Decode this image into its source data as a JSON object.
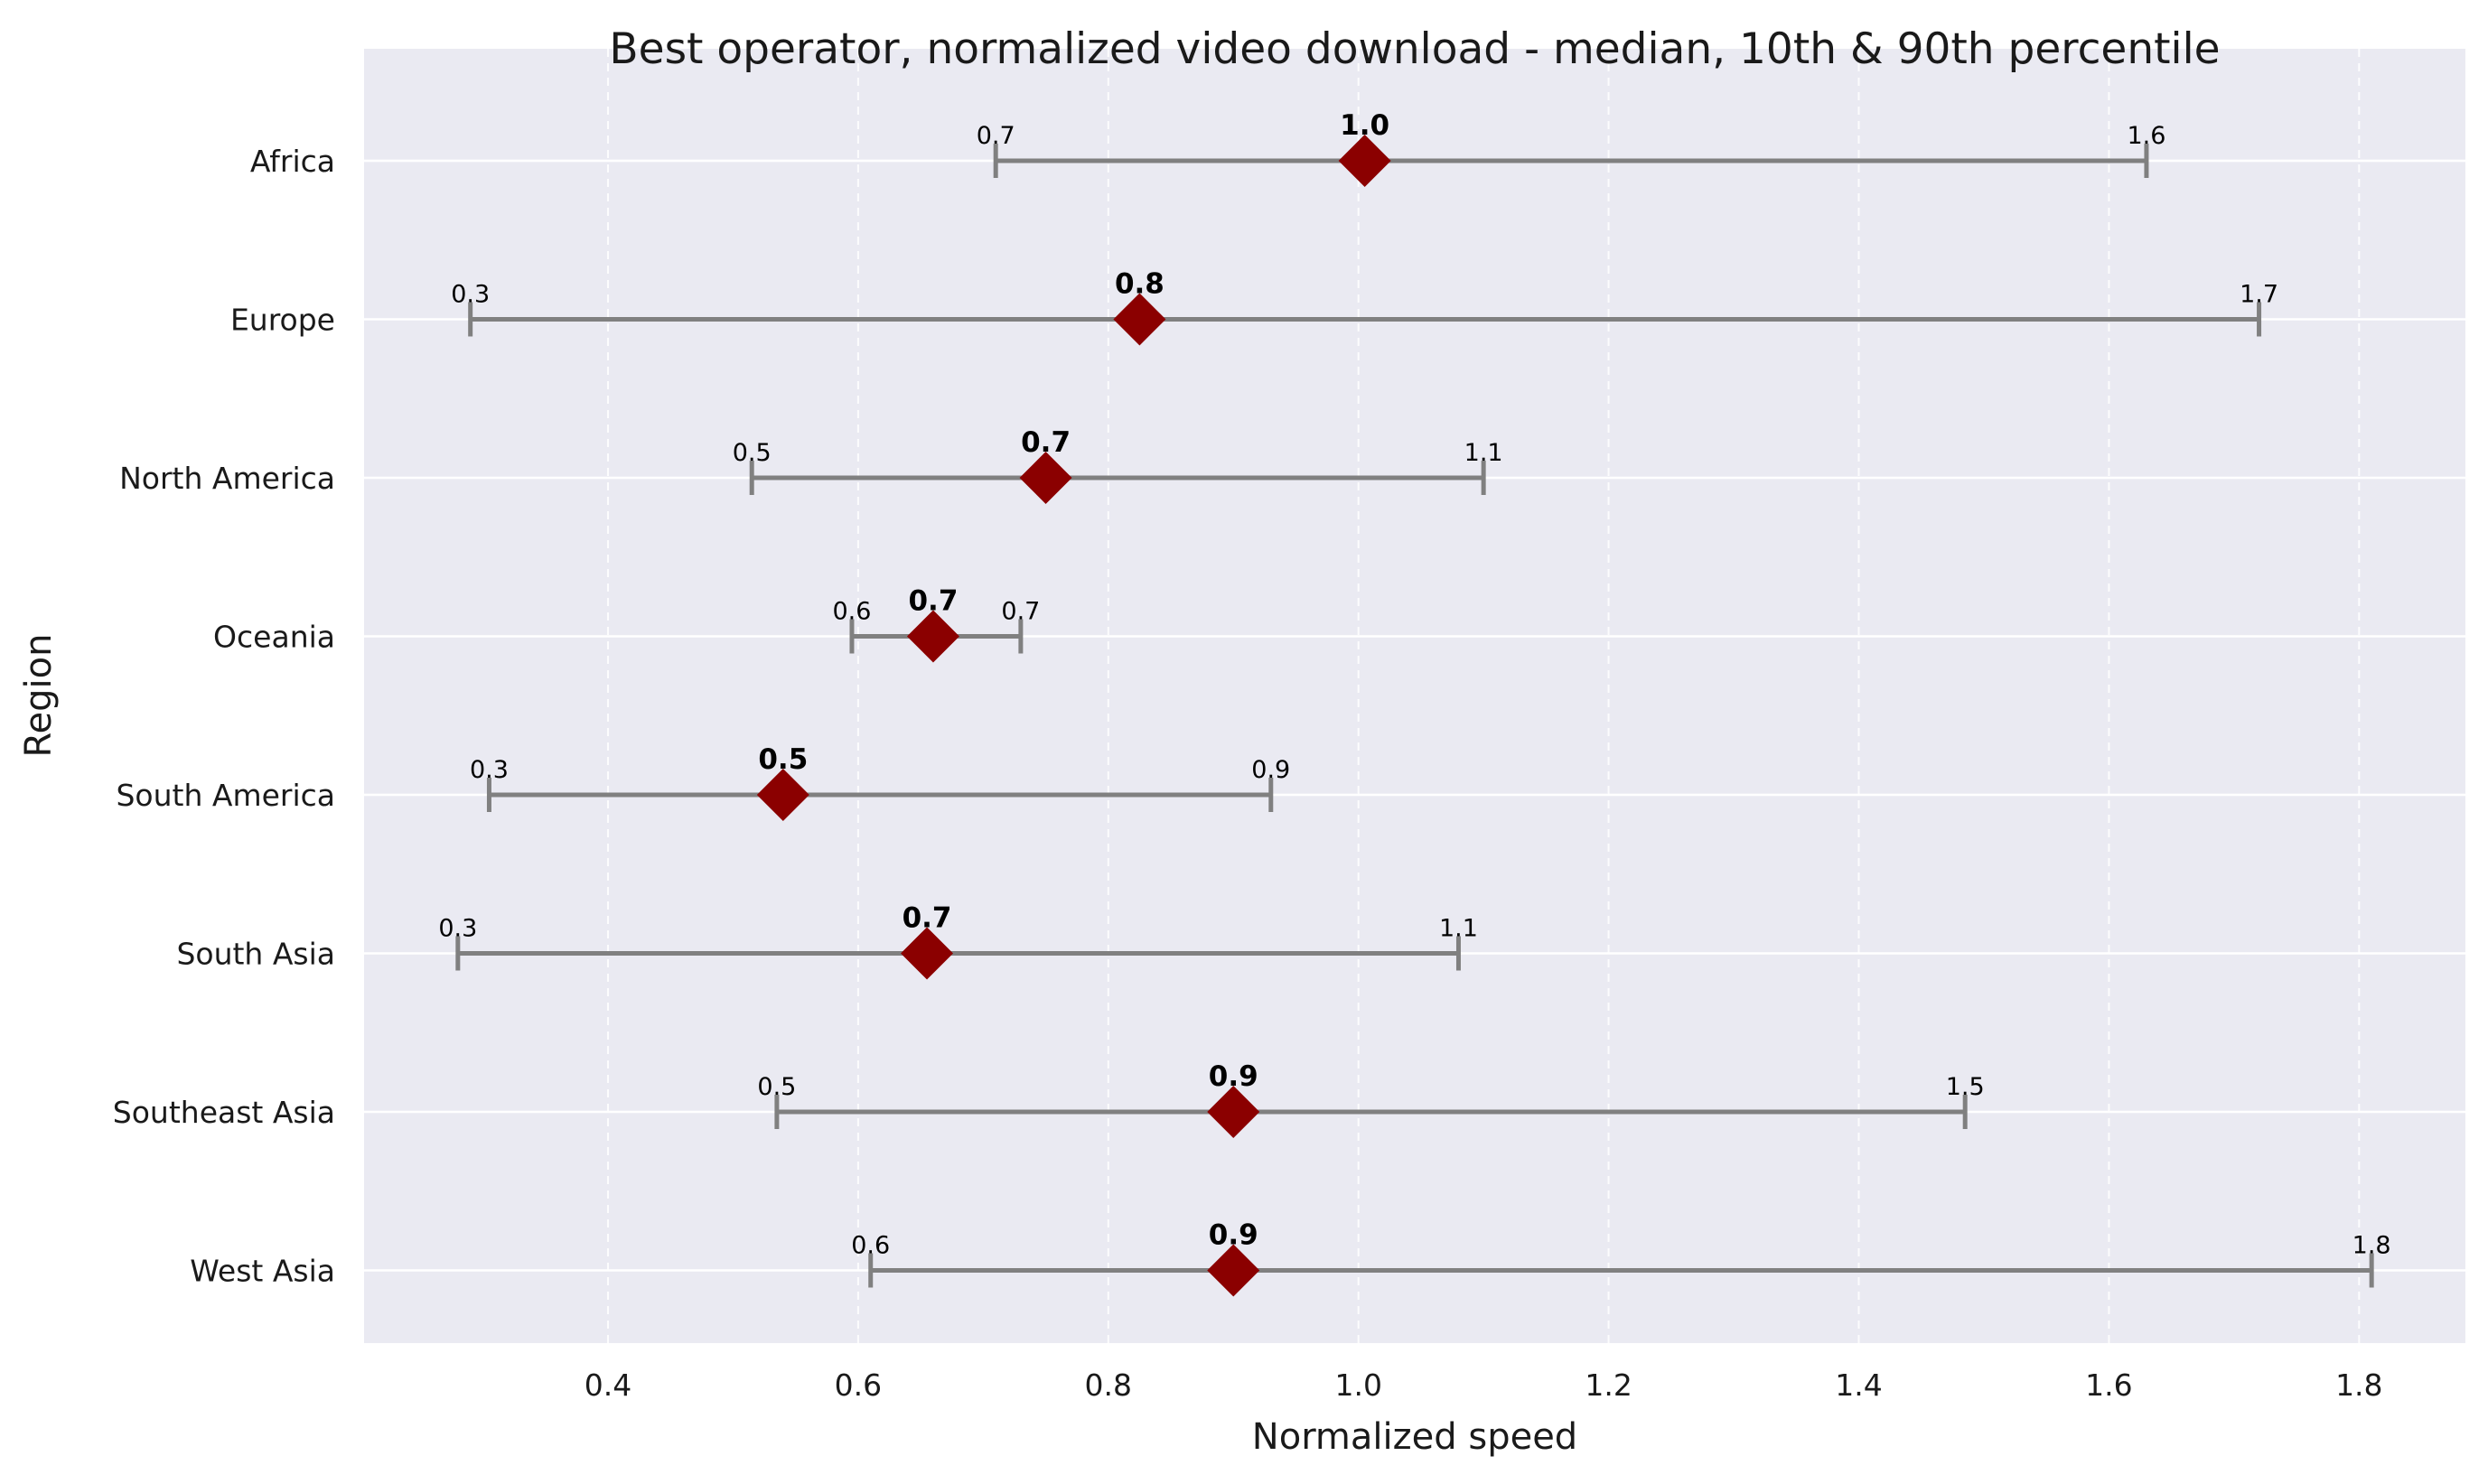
{
  "chart_data": {
    "type": "range",
    "title": "Best operator, normalized video download - median, 10th & 90th percentile",
    "xlabel": "Normalized speed",
    "ylabel": "Region",
    "xlim": [
      0.205,
      1.885
    ],
    "xticks": [
      0.4,
      0.6,
      0.8,
      1.0,
      1.2,
      1.4,
      1.6,
      1.8
    ],
    "xtick_labels": [
      "0.4",
      "0.6",
      "0.8",
      "1.0",
      "1.2",
      "1.4",
      "1.6",
      "1.8"
    ],
    "grid": true,
    "categories": [
      "Africa",
      "Europe",
      "North America",
      "Oceania",
      "South America",
      "South Asia",
      "Southeast Asia",
      "West Asia"
    ],
    "p10": [
      0.71,
      0.29,
      0.515,
      0.595,
      0.305,
      0.28,
      0.535,
      0.61
    ],
    "median": [
      1.005,
      0.825,
      0.75,
      0.66,
      0.54,
      0.655,
      0.9,
      0.9
    ],
    "p90": [
      1.63,
      1.72,
      1.1,
      0.73,
      0.93,
      1.08,
      1.485,
      1.81
    ],
    "p10_labels": [
      "0.7",
      "0.3",
      "0.5",
      "0.6",
      "0.3",
      "0.3",
      "0.5",
      "0.6"
    ],
    "median_labels": [
      "1.0",
      "0.8",
      "0.7",
      "0.7",
      "0.5",
      "0.7",
      "0.9",
      "0.9"
    ],
    "p90_labels": [
      "1.6",
      "1.7",
      "1.1",
      "0.7",
      "0.9",
      "1.1",
      "1.5",
      "1.8"
    ],
    "colors": {
      "plot_background": "#eaeaf2",
      "grid": "#ffffff",
      "range_line": "#808080",
      "median_marker": "#8b0000",
      "text": "#1a1a1a"
    }
  }
}
